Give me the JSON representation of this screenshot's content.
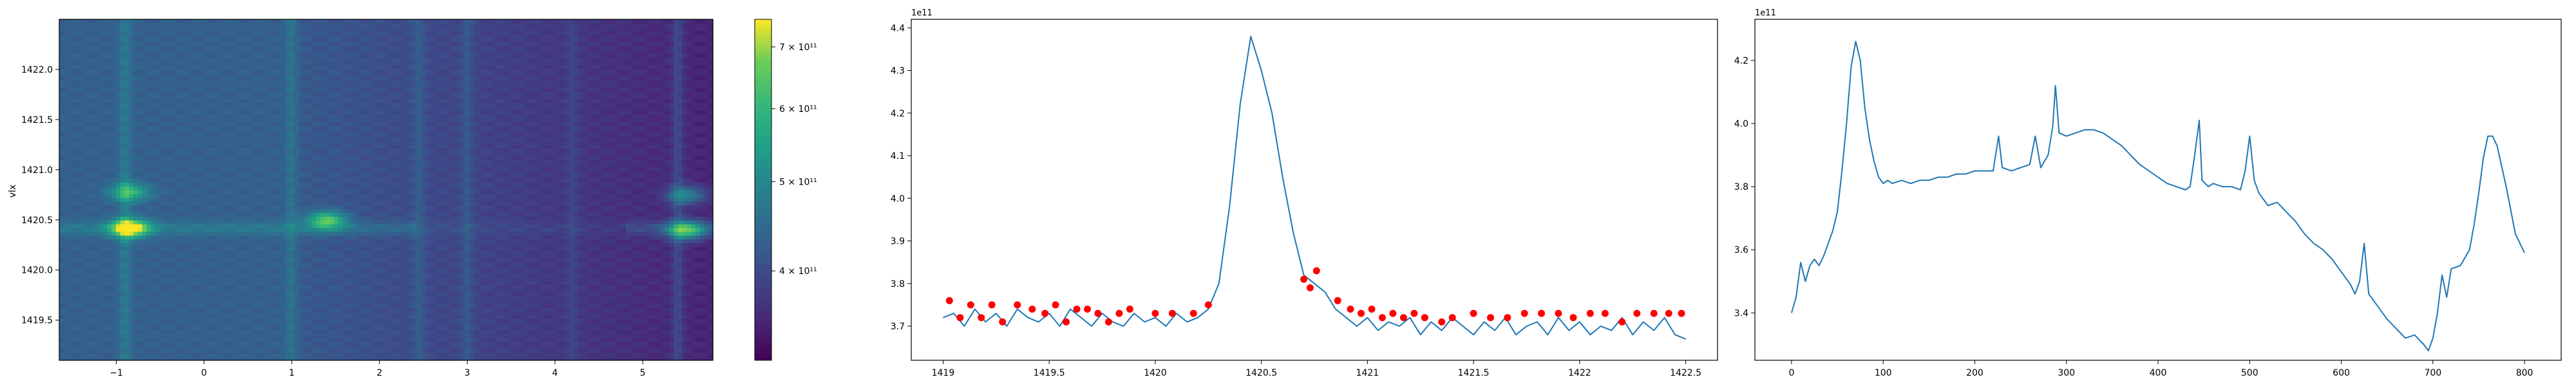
{
  "chart_data": [
    {
      "type": "heatmap",
      "colormap": "viridis",
      "ylabel": "vlx",
      "xlim": [
        -1.65,
        5.8
      ],
      "ylim": [
        1419.1,
        1422.5
      ],
      "xticks": [
        -1,
        0,
        1,
        2,
        3,
        4,
        5
      ],
      "yticks": [
        1419.5,
        1420.0,
        1420.5,
        1421.0,
        1421.5,
        1422.0
      ],
      "vertical_bands": [
        {
          "x": -0.9,
          "strength": 0.55
        },
        {
          "x": 1.0,
          "strength": 0.45
        },
        {
          "x": 2.45,
          "strength": 0.35
        },
        {
          "x": 3.0,
          "strength": 0.4
        },
        {
          "x": 4.2,
          "strength": 0.25
        },
        {
          "x": 5.4,
          "strength": 0.55
        }
      ],
      "hotspots": [
        {
          "x": -0.85,
          "y": 1420.42,
          "intensity": 1.0
        },
        {
          "x": -0.85,
          "y": 1420.78,
          "intensity": 0.55
        },
        {
          "x": 1.4,
          "y": 1420.5,
          "intensity": 0.7
        },
        {
          "x": 5.5,
          "y": 1420.4,
          "intensity": 0.85
        },
        {
          "x": 5.5,
          "y": 1420.75,
          "intensity": 0.5
        }
      ],
      "colorbar": {
        "ticks": [
          {
            "value": 400000000000,
            "label": "4 × 10¹¹"
          },
          {
            "value": 500000000000,
            "label": "5 × 10¹¹"
          },
          {
            "value": 600000000000,
            "label": "6 × 10¹¹"
          },
          {
            "value": 700000000000,
            "label": "7 × 10¹¹"
          }
        ],
        "range": [
          320000000000,
          750000000000
        ],
        "scale": "log"
      }
    },
    {
      "type": "line",
      "offset_label": "1e11",
      "xlim": [
        1418.85,
        1422.65
      ],
      "ylim": [
        3.62,
        4.42
      ],
      "xticks": [
        1419.0,
        1419.5,
        1420.0,
        1420.5,
        1421.0,
        1421.5,
        1422.0,
        1422.5
      ],
      "yticks": [
        3.7,
        3.8,
        3.9,
        4.0,
        4.1,
        4.2,
        4.3,
        4.4
      ],
      "line_color": "#1f77b4",
      "marker_color": "#ff0000",
      "series": [
        {
          "x": [
            1419.0,
            1419.05,
            1419.1,
            1419.15,
            1419.2,
            1419.25,
            1419.3,
            1419.35,
            1419.4,
            1419.45,
            1419.5,
            1419.55,
            1419.6,
            1419.65,
            1419.7,
            1419.75,
            1419.8,
            1419.85,
            1419.9,
            1419.95,
            1420.0,
            1420.05,
            1420.1,
            1420.15,
            1420.2,
            1420.25,
            1420.3,
            1420.35,
            1420.4,
            1420.45,
            1420.5,
            1420.55,
            1420.6,
            1420.65,
            1420.7,
            1420.75,
            1420.8,
            1420.85,
            1420.9,
            1420.95,
            1421.0,
            1421.05,
            1421.1,
            1421.15,
            1421.2,
            1421.25,
            1421.3,
            1421.35,
            1421.4,
            1421.45,
            1421.5,
            1421.55,
            1421.6,
            1421.65,
            1421.7,
            1421.75,
            1421.8,
            1421.85,
            1421.9,
            1421.95,
            1422.0,
            1422.05,
            1422.1,
            1422.15,
            1422.2,
            1422.25,
            1422.3,
            1422.35,
            1422.4,
            1422.45,
            1422.5
          ],
          "y": [
            3.72,
            3.73,
            3.7,
            3.74,
            3.71,
            3.73,
            3.7,
            3.74,
            3.72,
            3.71,
            3.73,
            3.7,
            3.74,
            3.72,
            3.7,
            3.73,
            3.71,
            3.7,
            3.73,
            3.71,
            3.72,
            3.7,
            3.73,
            3.71,
            3.72,
            3.74,
            3.8,
            3.98,
            4.22,
            4.38,
            4.3,
            4.2,
            4.05,
            3.92,
            3.82,
            3.8,
            3.78,
            3.74,
            3.72,
            3.7,
            3.72,
            3.69,
            3.71,
            3.7,
            3.72,
            3.68,
            3.71,
            3.69,
            3.72,
            3.7,
            3.68,
            3.71,
            3.69,
            3.72,
            3.68,
            3.7,
            3.71,
            3.68,
            3.72,
            3.69,
            3.71,
            3.68,
            3.7,
            3.69,
            3.72,
            3.68,
            3.71,
            3.69,
            3.72,
            3.68,
            3.67
          ]
        }
      ],
      "peaks": {
        "x": [
          1419.03,
          1419.08,
          1419.13,
          1419.18,
          1419.23,
          1419.28,
          1419.35,
          1419.42,
          1419.48,
          1419.53,
          1419.58,
          1419.63,
          1419.68,
          1419.73,
          1419.78,
          1419.83,
          1419.88,
          1420.0,
          1420.08,
          1420.18,
          1420.25,
          1420.7,
          1420.73,
          1420.76,
          1420.86,
          1420.92,
          1420.97,
          1421.02,
          1421.07,
          1421.12,
          1421.17,
          1421.22,
          1421.27,
          1421.35,
          1421.4,
          1421.5,
          1421.58,
          1421.66,
          1421.74,
          1421.82,
          1421.9,
          1421.97,
          1422.05,
          1422.12,
          1422.2,
          1422.27,
          1422.35,
          1422.42,
          1422.48
        ],
        "y": [
          3.76,
          3.72,
          3.75,
          3.72,
          3.75,
          3.71,
          3.75,
          3.74,
          3.73,
          3.75,
          3.71,
          3.74,
          3.74,
          3.73,
          3.71,
          3.73,
          3.74,
          3.73,
          3.73,
          3.73,
          3.75,
          3.81,
          3.79,
          3.83,
          3.76,
          3.74,
          3.73,
          3.74,
          3.72,
          3.73,
          3.72,
          3.73,
          3.72,
          3.71,
          3.72,
          3.73,
          3.72,
          3.72,
          3.73,
          3.73,
          3.73,
          3.72,
          3.73,
          3.73,
          3.71,
          3.73,
          3.73,
          3.73,
          3.73
        ]
      }
    },
    {
      "type": "line",
      "offset_label": "1e11",
      "xlim": [
        -40,
        840
      ],
      "ylim": [
        3.25,
        4.33
      ],
      "xticks": [
        0,
        100,
        200,
        300,
        400,
        500,
        600,
        700,
        800
      ],
      "yticks": [
        3.4,
        3.6,
        3.8,
        4.0,
        4.2
      ],
      "line_color": "#1f77b4",
      "series": [
        {
          "x": [
            0,
            5,
            10,
            15,
            20,
            25,
            30,
            35,
            40,
            45,
            50,
            55,
            60,
            65,
            70,
            75,
            80,
            85,
            90,
            95,
            100,
            105,
            110,
            120,
            130,
            140,
            150,
            160,
            170,
            180,
            190,
            200,
            210,
            220,
            226,
            230,
            240,
            250,
            260,
            266,
            272,
            280,
            285,
            288,
            292,
            300,
            310,
            320,
            330,
            340,
            350,
            360,
            370,
            380,
            390,
            400,
            410,
            420,
            430,
            435,
            440,
            445,
            448,
            455,
            460,
            470,
            480,
            490,
            495,
            500,
            505,
            510,
            520,
            530,
            540,
            550,
            560,
            570,
            580,
            590,
            600,
            610,
            615,
            620,
            625,
            630,
            640,
            650,
            660,
            670,
            680,
            690,
            695,
            700,
            705,
            710,
            715,
            720,
            730,
            740,
            745,
            750,
            755,
            760,
            765,
            770,
            780,
            790,
            800
          ],
          "y": [
            3.4,
            3.45,
            3.56,
            3.5,
            3.55,
            3.57,
            3.55,
            3.58,
            3.62,
            3.66,
            3.72,
            3.85,
            4.0,
            4.18,
            4.26,
            4.2,
            4.05,
            3.95,
            3.88,
            3.83,
            3.81,
            3.82,
            3.81,
            3.82,
            3.81,
            3.82,
            3.82,
            3.83,
            3.83,
            3.84,
            3.84,
            3.85,
            3.85,
            3.85,
            3.96,
            3.86,
            3.85,
            3.86,
            3.87,
            3.96,
            3.86,
            3.9,
            3.99,
            4.12,
            3.97,
            3.96,
            3.97,
            3.98,
            3.98,
            3.97,
            3.95,
            3.93,
            3.9,
            3.87,
            3.85,
            3.83,
            3.81,
            3.8,
            3.79,
            3.8,
            3.9,
            4.01,
            3.82,
            3.8,
            3.81,
            3.8,
            3.8,
            3.79,
            3.85,
            3.96,
            3.82,
            3.78,
            3.74,
            3.75,
            3.72,
            3.69,
            3.65,
            3.62,
            3.6,
            3.57,
            3.53,
            3.49,
            3.46,
            3.5,
            3.62,
            3.46,
            3.42,
            3.38,
            3.35,
            3.32,
            3.33,
            3.3,
            3.28,
            3.32,
            3.4,
            3.52,
            3.45,
            3.54,
            3.55,
            3.6,
            3.68,
            3.78,
            3.89,
            3.96,
            3.96,
            3.93,
            3.8,
            3.65,
            3.59
          ]
        }
      ]
    }
  ]
}
